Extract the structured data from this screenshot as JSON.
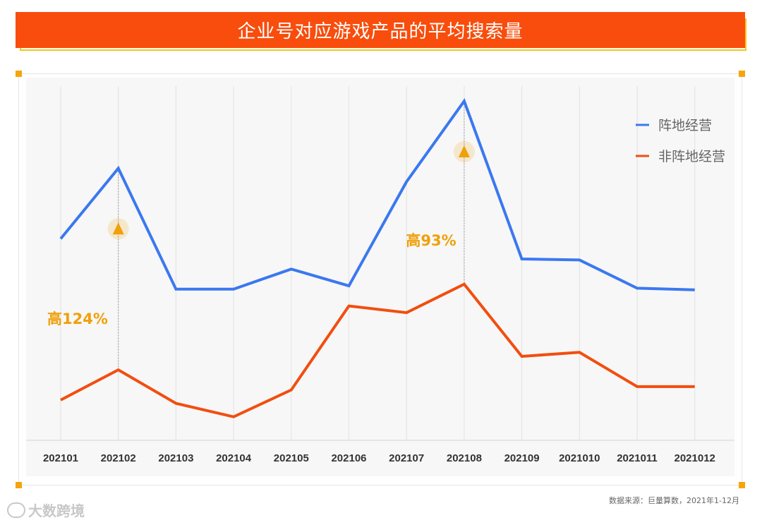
{
  "title": "企业号对应游戏产品的平均搜索量",
  "source_note": "数据来源：巨量算数，2021年1-12月",
  "watermark": "大数跨境",
  "colors": {
    "title_bg": "#f84d0c",
    "series_a": "#3b78f0",
    "series_b": "#f24e0f",
    "accent": "#f0a00a"
  },
  "chart_data": {
    "type": "line",
    "title": "企业号对应游戏产品的平均搜索量",
    "categories": [
      "202101",
      "202102",
      "202103",
      "202104",
      "202105",
      "202106",
      "202107",
      "202108",
      "202109",
      "2021010",
      "2021011",
      "2021012"
    ],
    "series": [
      {
        "name": "阵地经营",
        "values": [
          60,
          81,
          45,
          45,
          51,
          46,
          77,
          101,
          54,
          53.7,
          45.3,
          44.8
        ]
      },
      {
        "name": "非阵地经营",
        "values": [
          12,
          21,
          11,
          7,
          15,
          40,
          38,
          46.5,
          25,
          26.2,
          16,
          16
        ]
      }
    ],
    "ylim": [
      0,
      108
    ],
    "grid": true,
    "legend_position": "top-right",
    "annotations": [
      {
        "text": "高124%",
        "category": "202102"
      },
      {
        "text": "高93%",
        "category": "202108"
      }
    ]
  }
}
